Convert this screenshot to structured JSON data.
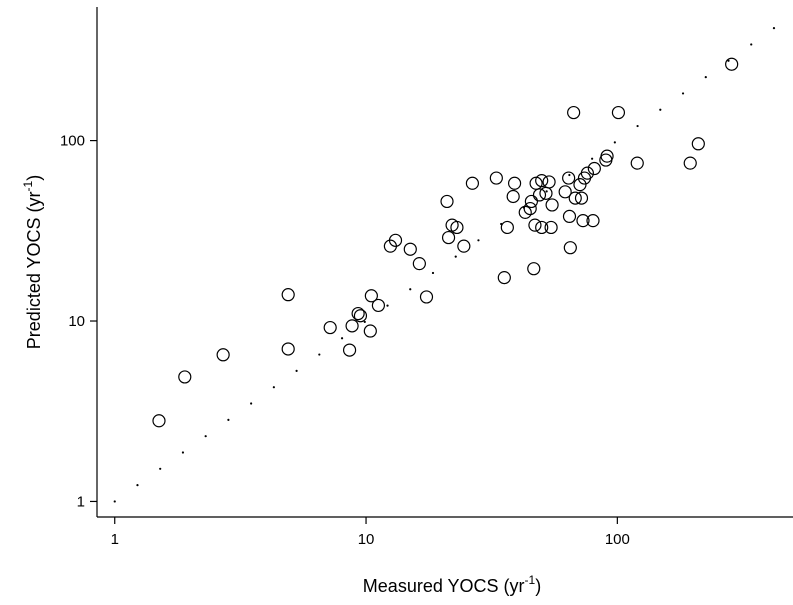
{
  "chart_data": {
    "type": "scatter",
    "xscale": "log",
    "yscale": "log",
    "xlim": [
      0.85,
      500
    ],
    "ylim": [
      0.82,
      550
    ],
    "x_ticks": [
      1,
      10,
      100
    ],
    "y_ticks": [
      1,
      10,
      100
    ],
    "x_tick_labels": [
      "1",
      "10",
      "100"
    ],
    "y_tick_labels": [
      "1",
      "10",
      "100"
    ],
    "xlabel": {
      "base": "Measured YOCS (yr",
      "sup": "-1",
      "close": ")"
    },
    "ylabel": {
      "base": "Predicted YOCS (yr",
      "sup": "-1",
      "close": ")"
    },
    "grid": false,
    "legend": "none",
    "reference_line": {
      "style": "dotted",
      "from": [
        1,
        1
      ],
      "to": [
        420,
        420
      ]
    },
    "points": [
      {
        "x": 1.5,
        "y": 2.8
      },
      {
        "x": 1.9,
        "y": 4.9
      },
      {
        "x": 2.7,
        "y": 6.5
      },
      {
        "x": 4.9,
        "y": 14
      },
      {
        "x": 4.9,
        "y": 7
      },
      {
        "x": 7.2,
        "y": 9.2
      },
      {
        "x": 8.6,
        "y": 6.9
      },
      {
        "x": 8.8,
        "y": 9.4
      },
      {
        "x": 9.3,
        "y": 11
      },
      {
        "x": 9.5,
        "y": 10.7
      },
      {
        "x": 10.4,
        "y": 8.8
      },
      {
        "x": 10.5,
        "y": 13.8
      },
      {
        "x": 11.2,
        "y": 12.2
      },
      {
        "x": 12.5,
        "y": 26
      },
      {
        "x": 13.1,
        "y": 28
      },
      {
        "x": 15,
        "y": 25
      },
      {
        "x": 16.3,
        "y": 20.8
      },
      {
        "x": 17.4,
        "y": 13.6
      },
      {
        "x": 21,
        "y": 46
      },
      {
        "x": 21.3,
        "y": 29
      },
      {
        "x": 22,
        "y": 34
      },
      {
        "x": 23,
        "y": 33
      },
      {
        "x": 24.5,
        "y": 26
      },
      {
        "x": 26.5,
        "y": 58
      },
      {
        "x": 33,
        "y": 62
      },
      {
        "x": 35.5,
        "y": 17.4
      },
      {
        "x": 36.5,
        "y": 33
      },
      {
        "x": 38.5,
        "y": 49
      },
      {
        "x": 39,
        "y": 58
      },
      {
        "x": 43,
        "y": 40
      },
      {
        "x": 45,
        "y": 42
      },
      {
        "x": 45.5,
        "y": 46
      },
      {
        "x": 46.5,
        "y": 19.5
      },
      {
        "x": 47,
        "y": 34
      },
      {
        "x": 47.5,
        "y": 58
      },
      {
        "x": 49,
        "y": 50
      },
      {
        "x": 50,
        "y": 60
      },
      {
        "x": 50,
        "y": 33
      },
      {
        "x": 52,
        "y": 51
      },
      {
        "x": 53.5,
        "y": 59
      },
      {
        "x": 54.5,
        "y": 33
      },
      {
        "x": 55,
        "y": 44
      },
      {
        "x": 62,
        "y": 52
      },
      {
        "x": 64,
        "y": 62
      },
      {
        "x": 64.5,
        "y": 38
      },
      {
        "x": 65,
        "y": 25.5
      },
      {
        "x": 67,
        "y": 143
      },
      {
        "x": 68,
        "y": 48
      },
      {
        "x": 71,
        "y": 57
      },
      {
        "x": 72,
        "y": 48
      },
      {
        "x": 73,
        "y": 36
      },
      {
        "x": 74,
        "y": 62
      },
      {
        "x": 76,
        "y": 66
      },
      {
        "x": 80,
        "y": 36
      },
      {
        "x": 81,
        "y": 70
      },
      {
        "x": 90,
        "y": 78
      },
      {
        "x": 91,
        "y": 82
      },
      {
        "x": 101,
        "y": 143
      },
      {
        "x": 120,
        "y": 75
      },
      {
        "x": 195,
        "y": 75
      },
      {
        "x": 210,
        "y": 96
      },
      {
        "x": 285,
        "y": 265
      }
    ]
  }
}
